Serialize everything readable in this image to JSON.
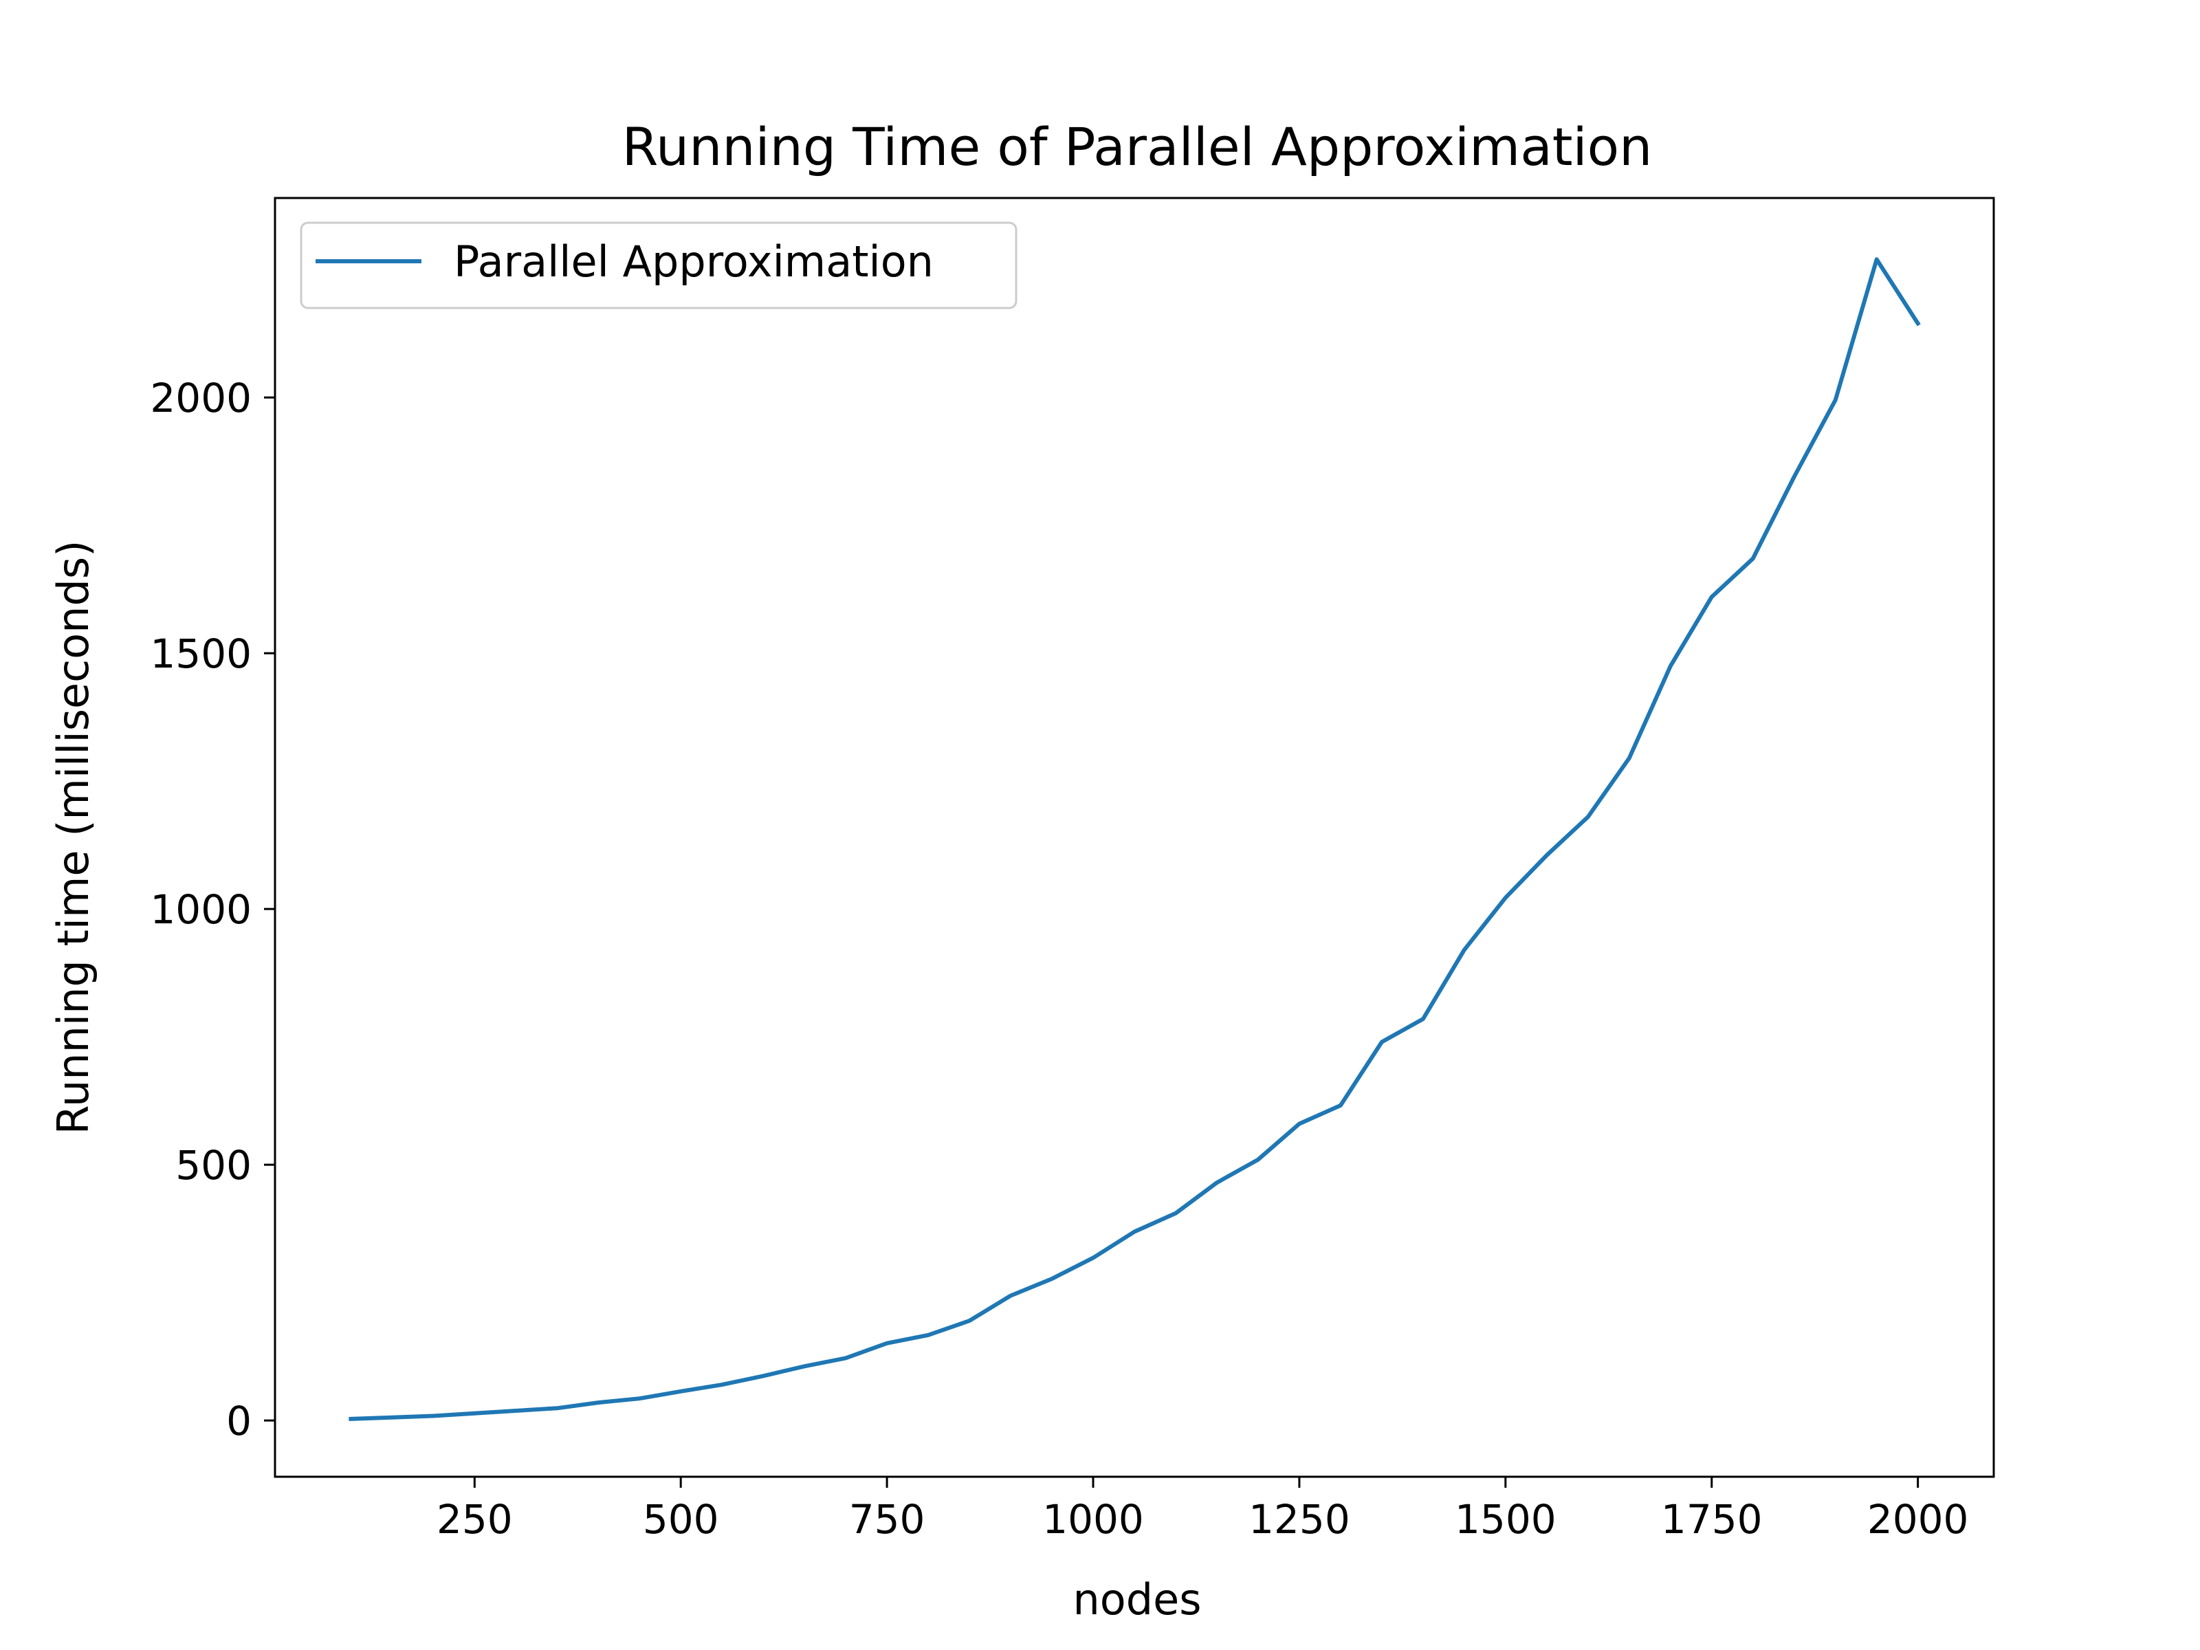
{
  "chart_data": {
    "type": "line",
    "title": "Running Time of Parallel Approximation",
    "xlabel": "nodes",
    "ylabel": "Running time (milliseconds)",
    "xlim": [
      8,
      2092
    ],
    "ylim": [
      -110,
      2390
    ],
    "xticks": [
      250,
      500,
      750,
      1000,
      1250,
      1500,
      1750,
      2000
    ],
    "yticks": [
      0,
      500,
      1000,
      1500,
      2000
    ],
    "grid": false,
    "legend_position": "top-left",
    "series": [
      {
        "name": "Parallel Approximation",
        "color": "#1f77b4",
        "x": [
          100,
          150,
          200,
          250,
          300,
          350,
          400,
          450,
          500,
          550,
          600,
          650,
          700,
          750,
          800,
          850,
          900,
          950,
          1000,
          1050,
          1100,
          1150,
          1200,
          1250,
          1300,
          1350,
          1400,
          1450,
          1500,
          1550,
          1600,
          1650,
          1700,
          1750,
          1800,
          1850,
          1900,
          1950,
          2000
        ],
        "y": [
          3,
          6,
          9,
          14,
          19,
          24,
          35,
          43,
          57,
          70,
          87,
          106,
          122,
          151,
          167,
          195,
          244,
          277,
          318,
          369,
          405,
          465,
          510,
          580,
          616,
          740,
          785,
          920,
          1022,
          1105,
          1180,
          1295,
          1475,
          1610,
          1685,
          1845,
          1995,
          2270,
          2145
        ]
      }
    ]
  }
}
